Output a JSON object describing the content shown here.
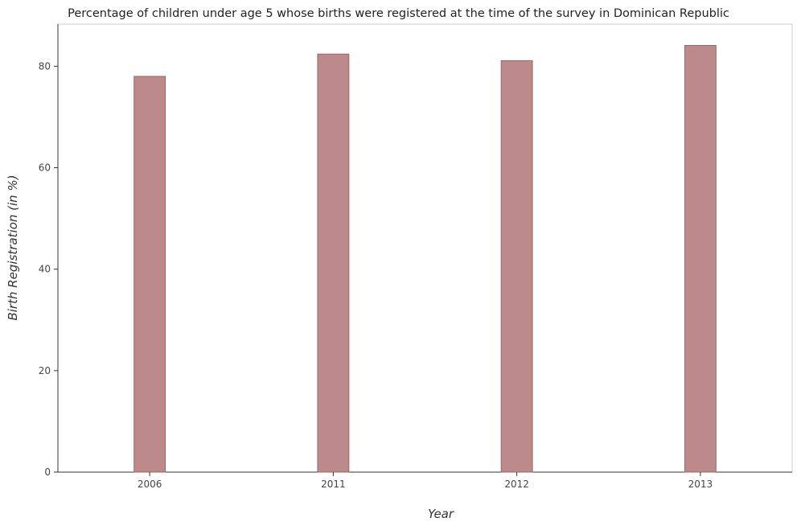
{
  "chart_data": {
    "type": "bar",
    "title": "Percentage of children under age 5 whose births were registered at the time of the survey in Dominican Republic",
    "xlabel": "Year",
    "ylabel": "Birth Registration (in %)",
    "categories": [
      "2006",
      "2011",
      "2012",
      "2013"
    ],
    "values": [
      78.0,
      82.4,
      81.1,
      84.1
    ],
    "ylim": [
      0,
      88.3
    ],
    "yticks": [
      0,
      20,
      40,
      60,
      80
    ],
    "grid": false,
    "legend": "none",
    "bar_color": "#bc8a8a",
    "bar_edge_color": "#9a6565"
  }
}
